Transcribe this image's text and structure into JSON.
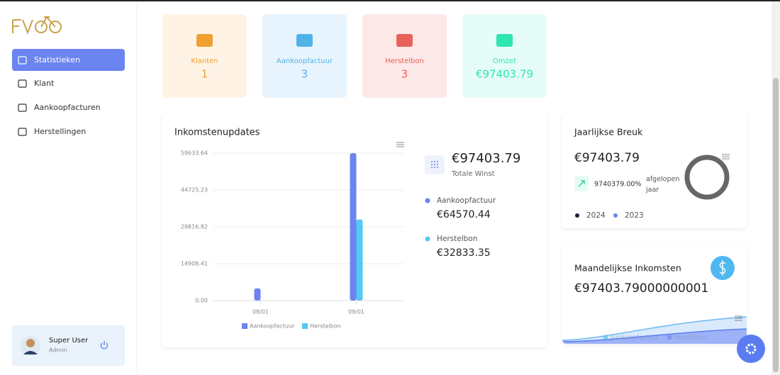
{
  "sidebar": {
    "menu": [
      "Statistieken",
      "Klant",
      "Aankoopfacturen",
      "Herstellingen"
    ],
    "user": {
      "name": "Super User",
      "role": "Admin"
    }
  },
  "stats": [
    {
      "label": "Klanten",
      "value": 1
    },
    {
      "label": "Aankoopfactuur",
      "value": 3
    },
    {
      "label": "Herstelbon",
      "value": 3
    },
    {
      "label": "Omzet",
      "value": "€97403.79"
    }
  ],
  "chart_data": {
    "type": "bar",
    "title": "Inkomstenupdates",
    "categories": [
      "08/01",
      "09/01"
    ],
    "series": [
      {
        "name": "Aankoopfactuur",
        "color": "#6b84f0",
        "values": [
          4936.8,
          59633.64
        ]
      },
      {
        "name": "Herstelbon",
        "color": "#56c8f5",
        "values": [
          0,
          32833.35
        ]
      }
    ],
    "ylim": [
      0,
      59633.64
    ],
    "yticks": [
      {
        "value": 0,
        "label": "0.00"
      },
      14908.41,
      29816.82,
      44725.23,
      59633.64
    ],
    "grid": true
  },
  "income_summary": {
    "total": "€97403.79",
    "total_label": "Totale Winst",
    "items": [
      {
        "name": "Aankoopfactuur",
        "value": "€64570.44"
      },
      {
        "name": "Herstelbon",
        "value": "€32833.35"
      }
    ]
  },
  "yearly": {
    "title": "Jaarlijkse Breuk",
    "value": "€97403.79",
    "change": "9740379.00%",
    "change_label": [
      "afgelopen",
      "jaar"
    ],
    "legend": [
      "2024",
      "2023"
    ]
  },
  "monthly": {
    "title": "Maandelijkse Inkomsten",
    "value": "€97403.79000000001",
    "legend": [
      "Aankoopfactuur",
      "Herstelbon"
    ]
  }
}
